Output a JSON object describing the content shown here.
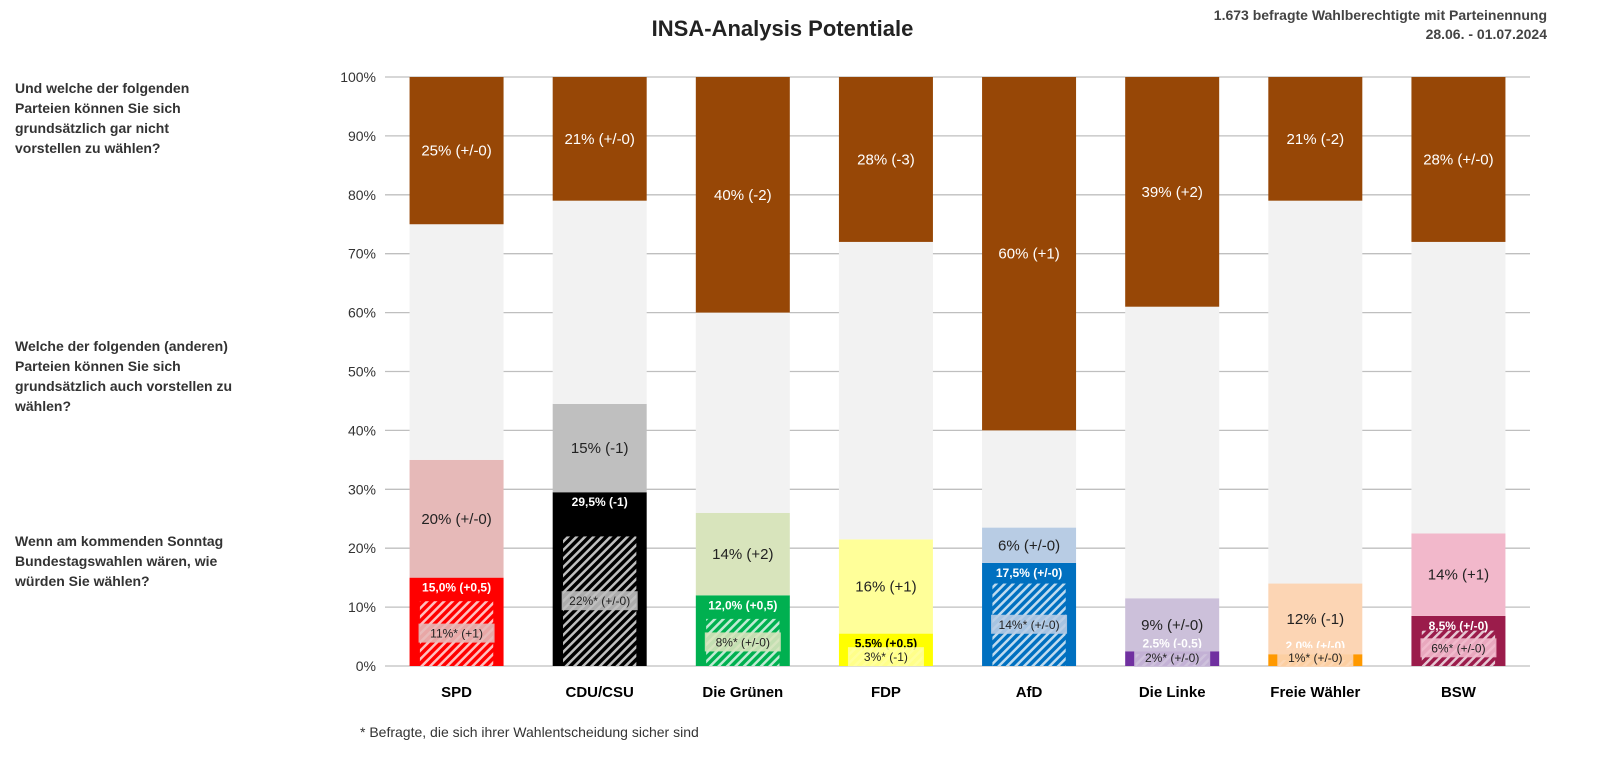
{
  "header": {
    "title": "INSA-Analysis Potentiale",
    "sample": "1.673 befragte Wahlberechtigte mit Parteinennung",
    "date": "28.06. - 01.07.2024"
  },
  "questions": [
    "Und welche der folgenden Parteien können Sie sich grundsätzlich gar nicht vorstellen zu wählen?",
    "Welche der folgenden (anderen) Parteien können Sie sich grundsätzlich auch vorstellen zu wählen?",
    "Wenn am kommenden Sonntag Bundestagswahlen wären, wie würden Sie wählen?"
  ],
  "footnote": "* Befragte, die sich ihrer Wahlentscheidung sicher sind",
  "chart_data": {
    "type": "bar",
    "stacked": true,
    "ylim": [
      0,
      100
    ],
    "yticks": [
      "0%",
      "10%",
      "20%",
      "30%",
      "40%",
      "50%",
      "60%",
      "70%",
      "80%",
      "90%",
      "100%"
    ],
    "grid": true,
    "colors": {
      "reject": "#974706",
      "neutral": "#f2f2f2"
    },
    "categories": [
      "SPD",
      "CDU/CSU",
      "Die Grünen",
      "FDP",
      "AfD",
      "Die Linke",
      "Freie Wähler",
      "BSW"
    ],
    "parties": [
      {
        "name": "SPD",
        "vote": 15.0,
        "vote_label": "15,0% (+0,5)",
        "sure": 11,
        "sure_label": "11%* (+1)",
        "potential": 20,
        "potential_label": "20% (+/-0)",
        "reject": 25,
        "reject_label": "25% (+/-0)",
        "color": "#ff0000",
        "light": "#e6b9b8",
        "text": "#fff"
      },
      {
        "name": "CDU/CSU",
        "vote": 29.5,
        "vote_label": "29,5% (-1)",
        "sure": 22,
        "sure_label": "22%* (+/-0)",
        "potential": 15,
        "potential_label": "15% (-1)",
        "reject": 21,
        "reject_label": "21% (+/-0)",
        "color": "#000000",
        "light": "#bfbfbf",
        "text": "#fff"
      },
      {
        "name": "Die Grünen",
        "vote": 12.0,
        "vote_label": "12,0% (+0,5)",
        "sure": 8,
        "sure_label": "8%* (+/-0)",
        "potential": 14,
        "potential_label": "14% (+2)",
        "reject": 40,
        "reject_label": "40% (-2)",
        "color": "#00b050",
        "light": "#d8e4bc",
        "text": "#fff"
      },
      {
        "name": "FDP",
        "vote": 5.5,
        "vote_label": "5,5% (+0,5)",
        "sure": 3,
        "sure_label": "3%* (-1)",
        "potential": 16,
        "potential_label": "16% (+1)",
        "reject": 28,
        "reject_label": "28% (-3)",
        "color": "#ffff00",
        "light": "#ffff99",
        "text": "#000"
      },
      {
        "name": "AfD",
        "vote": 17.5,
        "vote_label": "17,5% (+/-0)",
        "sure": 14,
        "sure_label": "14%* (+/-0)",
        "potential": 6,
        "potential_label": "6% (+/-0)",
        "reject": 60,
        "reject_label": "60% (+1)",
        "color": "#0070c0",
        "light": "#b8cce4",
        "text": "#fff"
      },
      {
        "name": "Die Linke",
        "vote": 2.5,
        "vote_label": "2,5% (-0,5)",
        "sure": 2,
        "sure_label": "2%* (+/-0)",
        "potential": 9,
        "potential_label": "9% (+/-0)",
        "reject": 39,
        "reject_label": "39% (+2)",
        "color": "#7030a0",
        "light": "#ccc0da",
        "text": "#fff"
      },
      {
        "name": "Freie Wähler",
        "vote": 2.0,
        "vote_label": "2,0% (+/-0)",
        "sure": 1,
        "sure_label": "1%* (+/-0)",
        "potential": 12,
        "potential_label": "12% (-1)",
        "reject": 21,
        "reject_label": "21% (-2)",
        "color": "#ff9900",
        "light": "#fcd5b4",
        "text": "#000"
      },
      {
        "name": "BSW",
        "vote": 8.5,
        "vote_label": "8,5% (+/-0)",
        "sure": 6,
        "sure_label": "6%* (+/-0)",
        "potential": 14,
        "potential_label": "14% (+1)",
        "reject": 28,
        "reject_label": "28% (+/-0)",
        "color": "#9b1c4b",
        "light": "#f2b8cb",
        "text": "#fff"
      }
    ]
  }
}
